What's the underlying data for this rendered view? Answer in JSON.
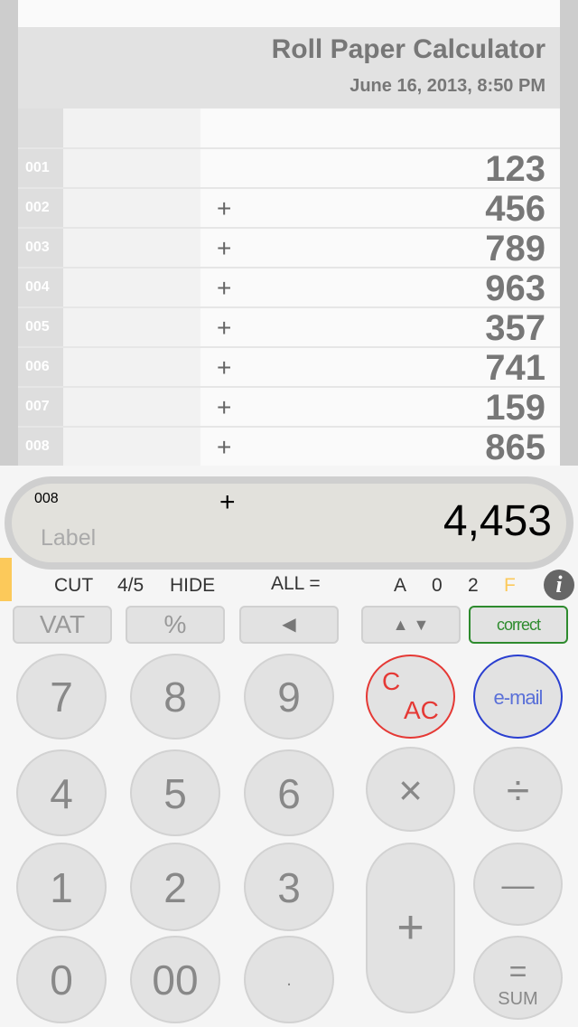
{
  "tape": {
    "title": "Roll Paper Calculator",
    "date": "June 16, 2013, 8:50 PM",
    "rows": [
      {
        "n": "001",
        "op": "",
        "v": "123"
      },
      {
        "n": "002",
        "op": "+",
        "v": "456"
      },
      {
        "n": "003",
        "op": "+",
        "v": "789"
      },
      {
        "n": "004",
        "op": "+",
        "v": "963"
      },
      {
        "n": "005",
        "op": "+",
        "v": "357"
      },
      {
        "n": "006",
        "op": "+",
        "v": "741"
      },
      {
        "n": "007",
        "op": "+",
        "v": "159"
      },
      {
        "n": "008",
        "op": "+",
        "v": "865"
      }
    ]
  },
  "display": {
    "count": "008",
    "op": "+",
    "label_placeholder": "Label",
    "value": "4,453"
  },
  "status": {
    "cut": "CUT",
    "round": "4/5",
    "hide": "HIDE",
    "all": "ALL =",
    "mode_a": "A",
    "dec0": "0",
    "dec2": "2",
    "f": "F",
    "f_color": "#fcc95a"
  },
  "functions": {
    "vat": "VAT",
    "percent": "%",
    "back": "◀",
    "updown": "▲ ▼",
    "correct": "correct"
  },
  "keys": {
    "k7": "7",
    "k8": "8",
    "k9": "9",
    "k4": "4",
    "k5": "5",
    "k6": "6",
    "k1": "1",
    "k2": "2",
    "k3": "3",
    "k0": "0",
    "k00": "00",
    "dot": ".",
    "c": "C",
    "ac": "AC",
    "email": "e-mail",
    "mul": "×",
    "div": "÷",
    "plus": "+",
    "minus": "—",
    "eq": "=",
    "sum": "SUM"
  },
  "colors": {
    "clear": "#e53935",
    "email": "#2a3fd0",
    "correct": "#2e8b2e"
  }
}
